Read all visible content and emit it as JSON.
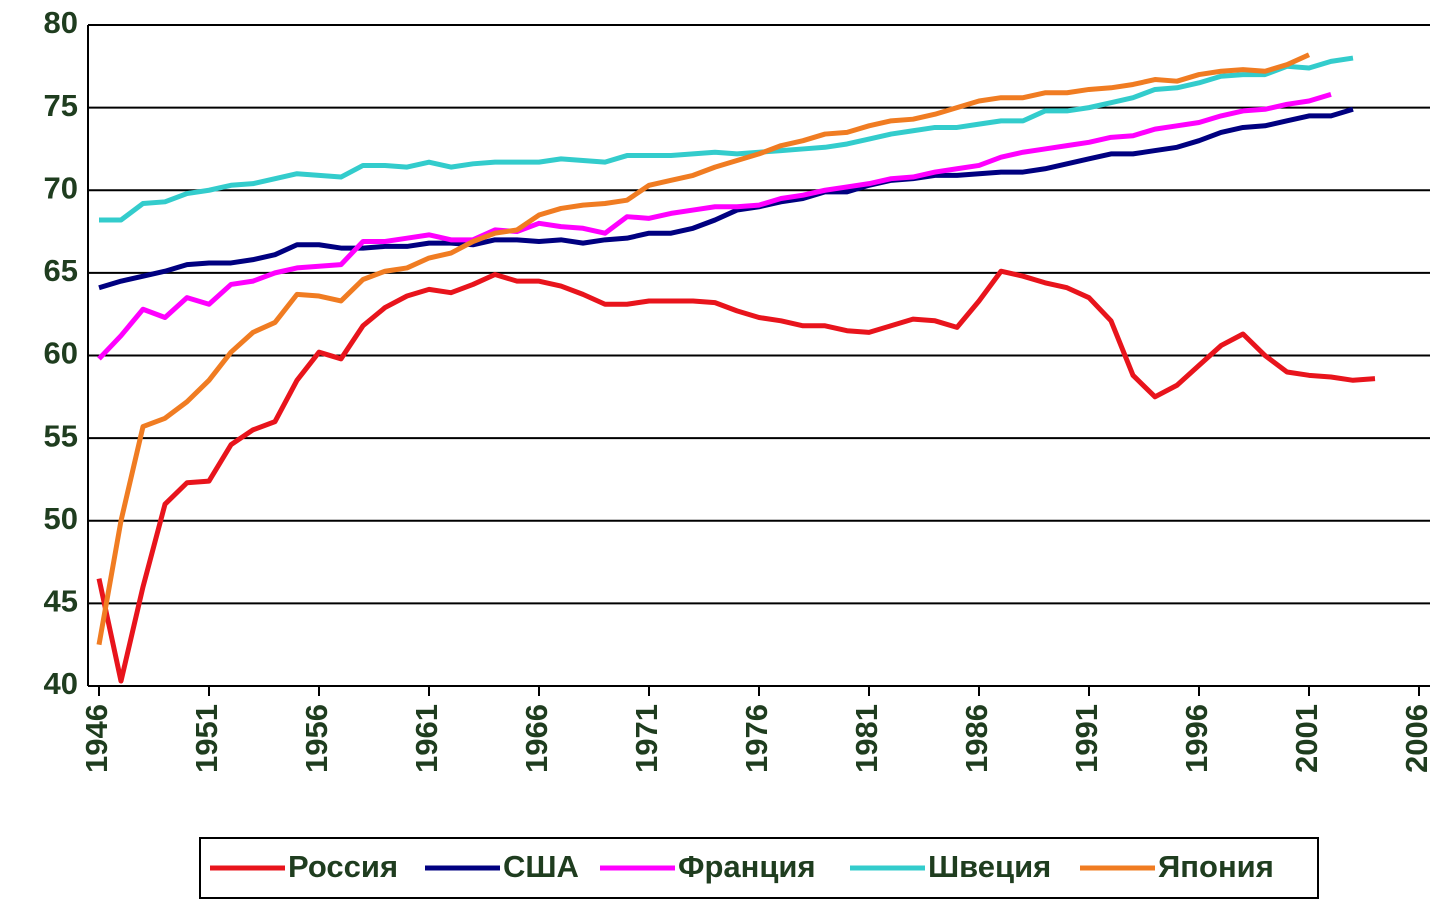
{
  "chart_data": {
    "type": "line",
    "x": [
      1946,
      1947,
      1948,
      1949,
      1950,
      1951,
      1952,
      1953,
      1954,
      1955,
      1956,
      1957,
      1958,
      1959,
      1960,
      1961,
      1962,
      1963,
      1964,
      1965,
      1966,
      1967,
      1968,
      1969,
      1970,
      1971,
      1972,
      1973,
      1974,
      1975,
      1976,
      1977,
      1978,
      1979,
      1980,
      1981,
      1982,
      1983,
      1984,
      1985,
      1986,
      1987,
      1988,
      1989,
      1990,
      1991,
      1992,
      1993,
      1994,
      1995,
      1996,
      1997,
      1998,
      1999,
      2000,
      2001,
      2002,
      2003,
      2004
    ],
    "series": [
      {
        "name": "Россия",
        "color": "#e8141c",
        "values": [
          46.5,
          40.3,
          46,
          51,
          52.3,
          52.4,
          54.6,
          55.5,
          56,
          58.5,
          60.2,
          59.8,
          61.8,
          62.9,
          63.6,
          64,
          63.8,
          64.3,
          64.9,
          64.5,
          64.5,
          64.2,
          63.7,
          63.1,
          63.1,
          63.3,
          63.3,
          63.3,
          63.2,
          62.7,
          62.3,
          62.1,
          61.8,
          61.8,
          61.5,
          61.4,
          61.8,
          62.2,
          62.1,
          61.7,
          63.3,
          65.1,
          64.8,
          64.4,
          64.1,
          63.5,
          62.1,
          58.8,
          57.5,
          58.2,
          59.4,
          60.6,
          61.3,
          60,
          59,
          58.8,
          58.7,
          58.5,
          58.6
        ]
      },
      {
        "name": "США",
        "color": "#000080",
        "values": [
          64.1,
          64.5,
          64.8,
          65.1,
          65.5,
          65.6,
          65.6,
          65.8,
          66.1,
          66.7,
          66.7,
          66.5,
          66.5,
          66.6,
          66.6,
          66.8,
          66.8,
          66.7,
          67,
          67,
          66.9,
          67,
          66.8,
          67,
          67.1,
          67.4,
          67.4,
          67.7,
          68.2,
          68.8,
          69,
          69.3,
          69.5,
          69.9,
          69.9,
          70.3,
          70.6,
          70.7,
          70.9,
          70.9,
          71,
          71.1,
          71.1,
          71.3,
          71.6,
          71.9,
          72.2,
          72.2,
          72.4,
          72.6,
          73,
          73.5,
          73.8,
          73.9,
          74.2,
          74.5,
          74.5,
          74.9,
          null
        ]
      },
      {
        "name": "Франция",
        "color": "#ff00ff",
        "values": [
          59.8,
          61.2,
          62.8,
          62.3,
          63.5,
          63.1,
          64.3,
          64.5,
          65,
          65.3,
          65.4,
          65.5,
          66.9,
          66.9,
          67.1,
          67.3,
          67,
          67,
          67.6,
          67.5,
          68,
          67.8,
          67.7,
          67.4,
          68.4,
          68.3,
          68.6,
          68.8,
          69,
          69,
          69.1,
          69.5,
          69.7,
          70,
          70.2,
          70.4,
          70.7,
          70.8,
          71.1,
          71.3,
          71.5,
          72,
          72.3,
          72.5,
          72.7,
          72.9,
          73.2,
          73.3,
          73.7,
          73.9,
          74.1,
          74.5,
          74.8,
          74.9,
          75.2,
          75.4,
          75.8,
          null,
          null
        ]
      },
      {
        "name": "Швеция",
        "color": "#33cccc",
        "values": [
          68.2,
          68.2,
          69.2,
          69.3,
          69.8,
          70,
          70.3,
          70.4,
          70.7,
          71,
          70.9,
          70.8,
          71.5,
          71.5,
          71.4,
          71.7,
          71.4,
          71.6,
          71.7,
          71.7,
          71.7,
          71.9,
          71.8,
          71.7,
          72.1,
          72.1,
          72.1,
          72.2,
          72.3,
          72.2,
          72.3,
          72.4,
          72.5,
          72.6,
          72.8,
          73.1,
          73.4,
          73.6,
          73.8,
          73.8,
          74,
          74.2,
          74.2,
          74.8,
          74.8,
          75,
          75.3,
          75.6,
          76.1,
          76.2,
          76.5,
          76.9,
          77,
          77,
          77.5,
          77.4,
          77.8,
          78,
          null
        ]
      },
      {
        "name": "Япония",
        "color": "#f07c22",
        "values": [
          42.5,
          50,
          55.7,
          56.2,
          57.2,
          58.5,
          60.2,
          61.4,
          62,
          63.7,
          63.6,
          63.3,
          64.6,
          65.1,
          65.3,
          65.9,
          66.2,
          66.9,
          67.4,
          67.6,
          68.5,
          68.9,
          69.1,
          69.2,
          69.4,
          70.3,
          70.6,
          70.9,
          71.4,
          71.8,
          72.2,
          72.7,
          73,
          73.4,
          73.5,
          73.9,
          74.2,
          74.3,
          74.6,
          75,
          75.4,
          75.6,
          75.6,
          75.9,
          75.9,
          76.1,
          76.2,
          76.4,
          76.7,
          76.6,
          77,
          77.2,
          77.3,
          77.2,
          77.6,
          78.2,
          null,
          null,
          null
        ]
      }
    ],
    "xlim": [
      1945.5,
      2006.5
    ],
    "xticks": [
      1946,
      1951,
      1956,
      1961,
      1966,
      1971,
      1976,
      1981,
      1986,
      1991,
      1996,
      2001,
      2006
    ],
    "ylim": [
      40,
      80
    ],
    "yticks": [
      40,
      45,
      50,
      55,
      60,
      65,
      70,
      75,
      80
    ],
    "grid": true,
    "legend": "bottom"
  }
}
